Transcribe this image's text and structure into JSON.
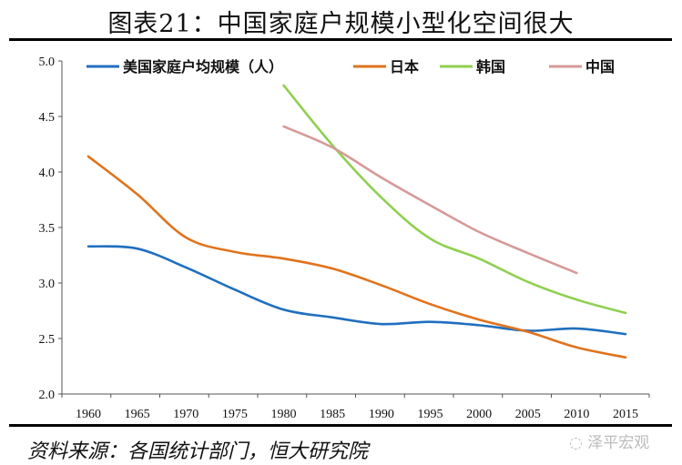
{
  "title": "图表21：中国家庭户规模小型化空间很大",
  "source": "资料来源：各国统计部门，恒大研究院",
  "watermark": "泽平宏观",
  "chart_data": {
    "type": "line",
    "title": "",
    "xlabel": "",
    "ylabel": "",
    "x": [
      1960,
      1965,
      1970,
      1975,
      1980,
      1985,
      1990,
      1995,
      2000,
      2005,
      2010,
      2015
    ],
    "x_tick_labels": [
      "1960",
      "1965",
      "1970",
      "1975",
      "1980",
      "1985",
      "1990",
      "1995",
      "2000",
      "2005",
      "2010",
      "2015"
    ],
    "ylim": [
      2.0,
      5.0
    ],
    "y_tick_labels": [
      "2.0",
      "2.5",
      "3.0",
      "3.5",
      "4.0",
      "4.5",
      "5.0"
    ],
    "grid": false,
    "legend": "top",
    "series": [
      {
        "name": "美国家庭户均规模（人）",
        "color": "#1f6fbf",
        "values": [
          3.33,
          3.31,
          3.14,
          2.94,
          2.76,
          2.69,
          2.63,
          2.65,
          2.62,
          2.57,
          2.59,
          2.54
        ]
      },
      {
        "name": "日本",
        "color": "#e0731d",
        "values": [
          4.14,
          3.8,
          3.41,
          3.28,
          3.22,
          3.13,
          2.98,
          2.81,
          2.67,
          2.56,
          2.42,
          2.33
        ]
      },
      {
        "name": "韩国",
        "color": "#8fcf4f",
        "values": [
          null,
          null,
          null,
          null,
          4.78,
          4.24,
          3.77,
          3.4,
          3.22,
          3.01,
          2.85,
          2.73
        ]
      },
      {
        "name": "中国",
        "color": "#d69a98",
        "values": [
          null,
          null,
          null,
          null,
          4.41,
          4.22,
          3.95,
          3.7,
          3.46,
          3.27,
          3.09,
          null
        ]
      }
    ]
  }
}
